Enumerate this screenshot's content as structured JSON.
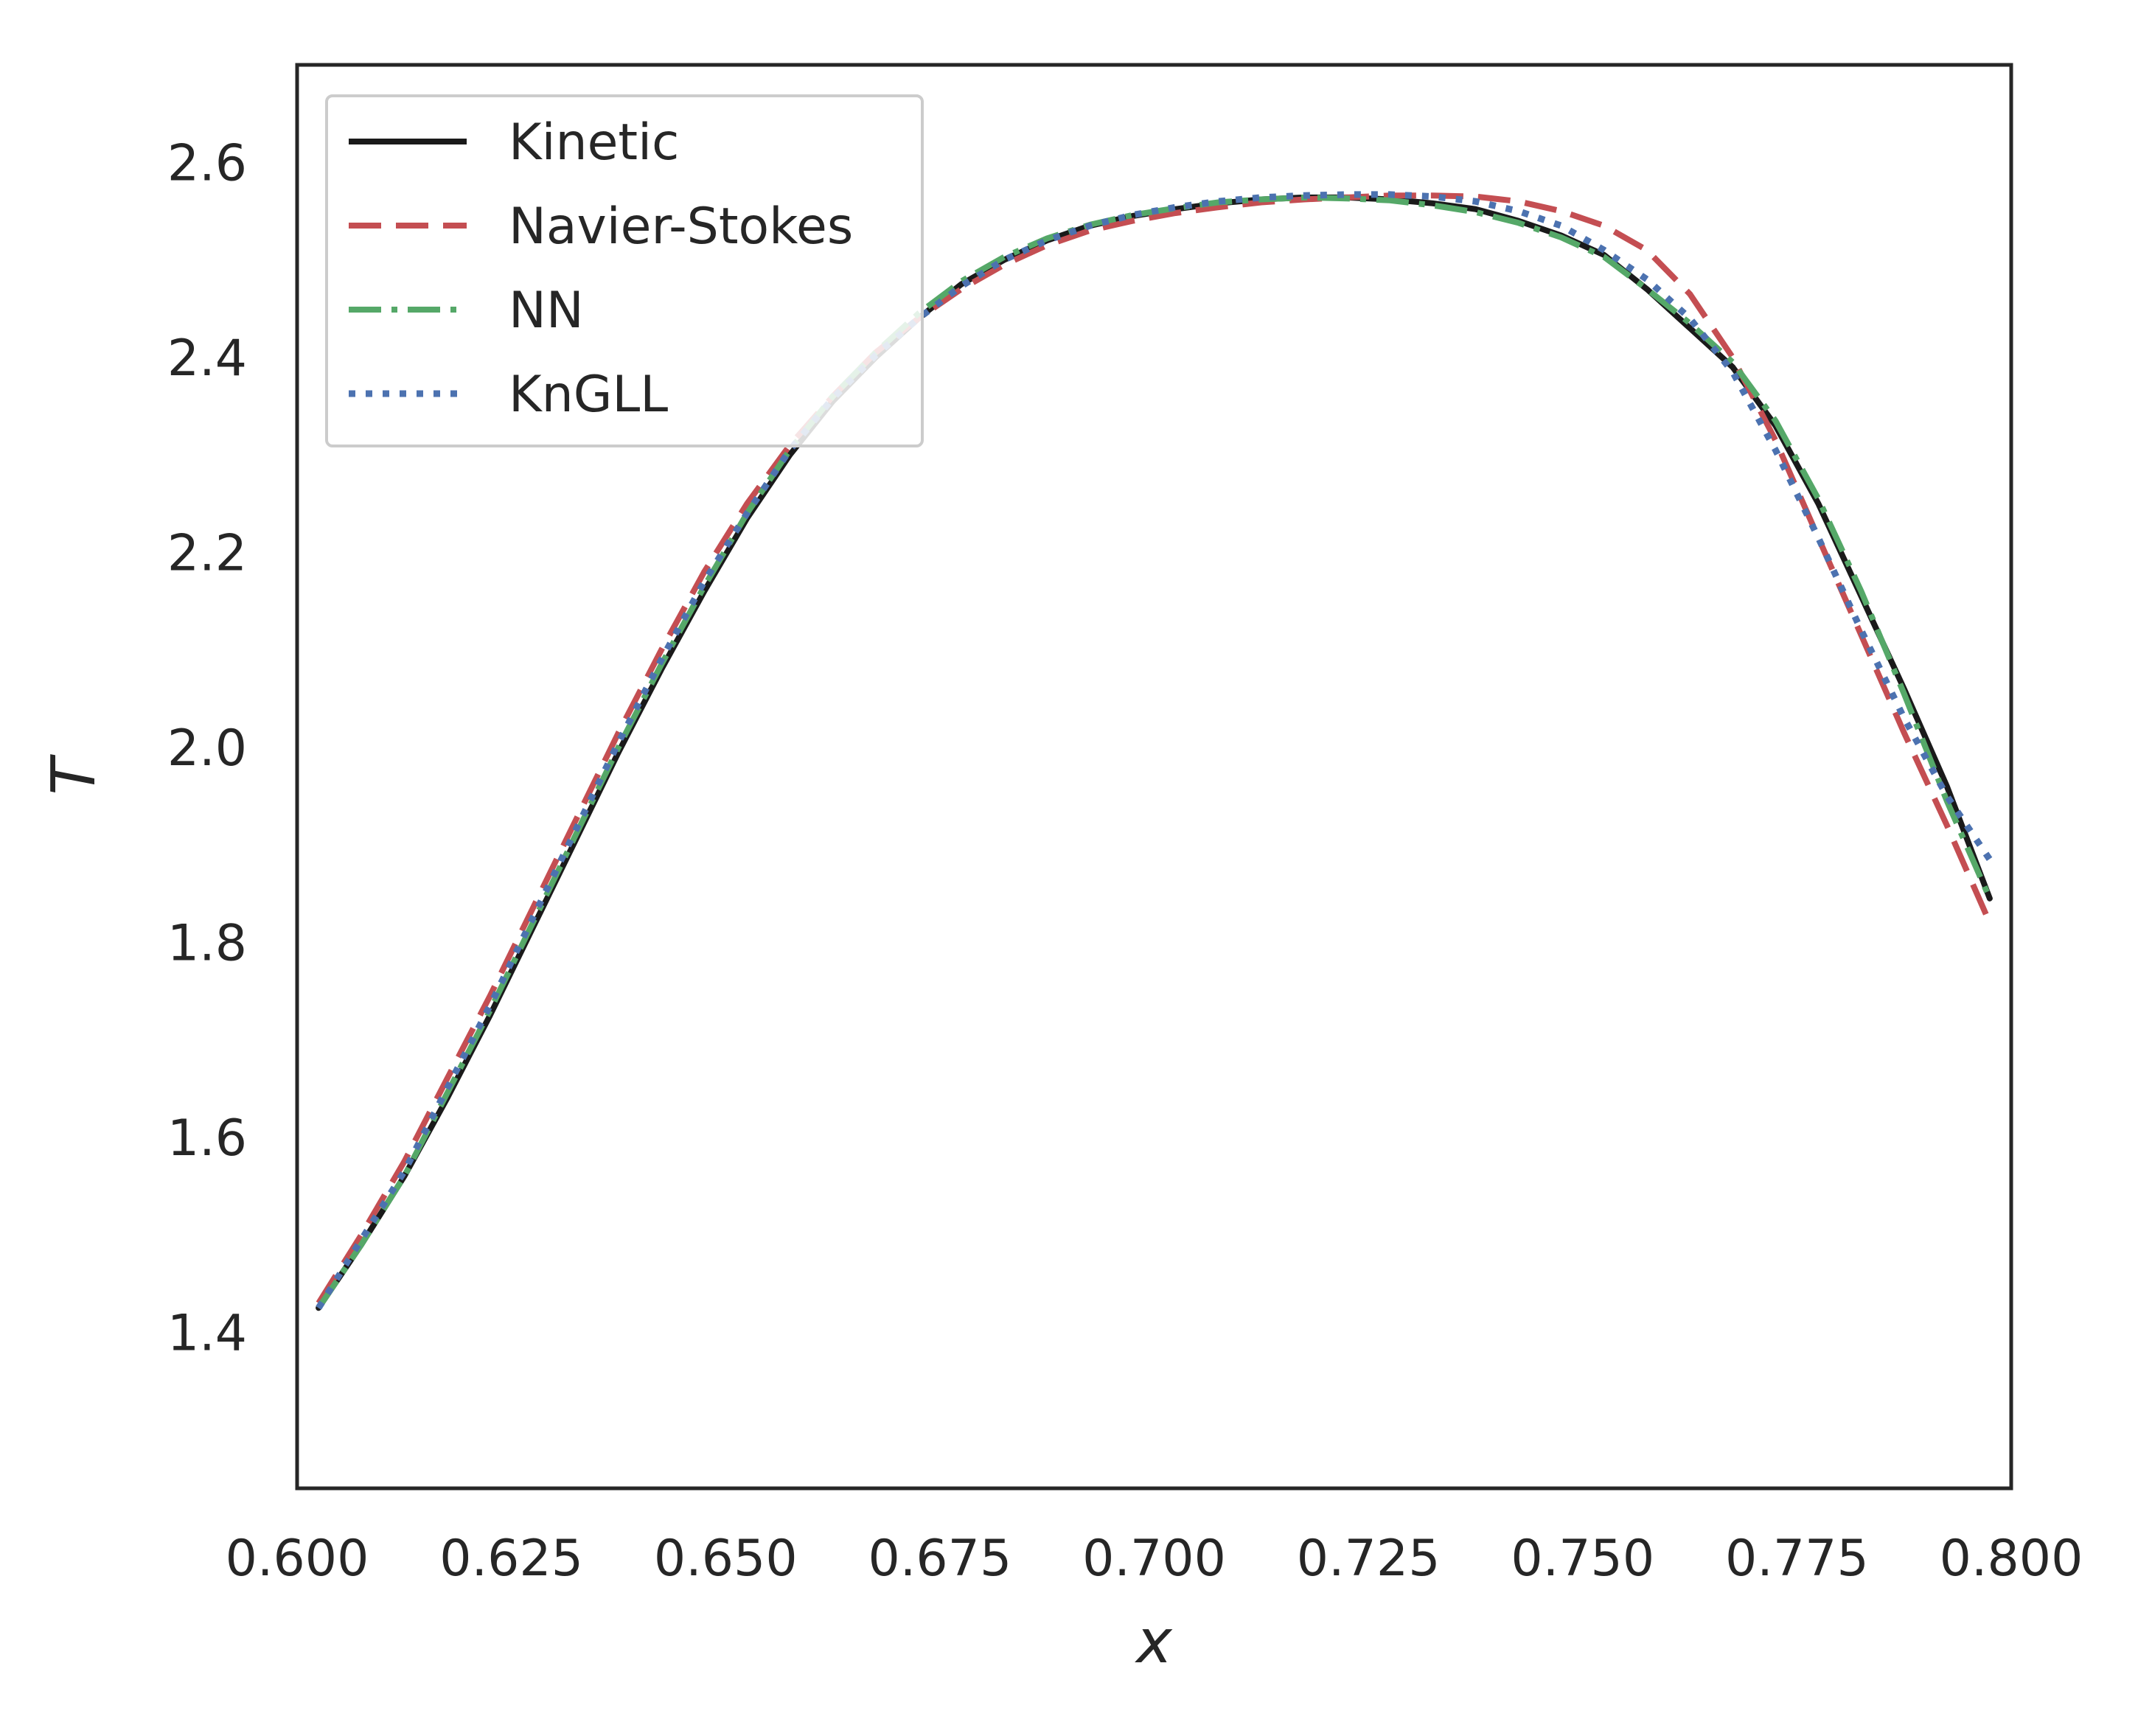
{
  "chart_data": {
    "type": "line",
    "title": "",
    "xlabel": "x",
    "ylabel": "T",
    "xlim": [
      0.6,
      0.8
    ],
    "ylim": [
      1.24,
      2.7
    ],
    "xticks": [
      0.6,
      0.625,
      0.65,
      0.675,
      0.7,
      0.725,
      0.75,
      0.775,
      0.8
    ],
    "xtick_labels": [
      "0.600",
      "0.625",
      "0.650",
      "0.675",
      "0.700",
      "0.725",
      "0.750",
      "0.775",
      "0.800"
    ],
    "yticks": [
      1.4,
      1.6,
      1.8,
      2.0,
      2.2,
      2.4,
      2.6
    ],
    "ytick_labels": [
      "1.4",
      "1.6",
      "1.8",
      "2.0",
      "2.2",
      "2.4",
      "2.6"
    ],
    "grid": false,
    "legend_position": "top-left",
    "series": [
      {
        "name": "Kinetic",
        "color": "#1a1a1a",
        "dash": "solid",
        "x": [
          0.6025,
          0.6075,
          0.6125,
          0.6175,
          0.6225,
          0.6275,
          0.6325,
          0.6375,
          0.6425,
          0.6475,
          0.6525,
          0.6575,
          0.6625,
          0.6675,
          0.6725,
          0.6775,
          0.6825,
          0.6875,
          0.6925,
          0.6975,
          0.7025,
          0.7075,
          0.7125,
          0.7175,
          0.7225,
          0.7275,
          0.7325,
          0.7375,
          0.7425,
          0.7475,
          0.7525,
          0.7575,
          0.7625,
          0.7675,
          0.7725,
          0.7775,
          0.7825,
          0.7875,
          0.7925,
          0.7975
        ],
        "y": [
          1.425,
          1.49,
          1.56,
          1.64,
          1.725,
          1.815,
          1.905,
          1.995,
          2.08,
          2.16,
          2.235,
          2.3,
          2.355,
          2.4,
          2.44,
          2.475,
          2.5,
          2.52,
          2.535,
          2.545,
          2.552,
          2.558,
          2.562,
          2.564,
          2.564,
          2.562,
          2.558,
          2.552,
          2.54,
          2.525,
          2.505,
          2.47,
          2.43,
          2.39,
          2.33,
          2.25,
          2.155,
          2.06,
          1.96,
          1.845
        ]
      },
      {
        "name": "Navier-Stokes",
        "color": "#c44e52",
        "dash": "dashed",
        "x": [
          0.6025,
          0.6075,
          0.6125,
          0.6175,
          0.6225,
          0.6275,
          0.6325,
          0.6375,
          0.6425,
          0.6475,
          0.6525,
          0.6575,
          0.6625,
          0.6675,
          0.6725,
          0.6775,
          0.6825,
          0.6875,
          0.6925,
          0.6975,
          0.7025,
          0.7075,
          0.7125,
          0.7175,
          0.7225,
          0.7275,
          0.7325,
          0.7375,
          0.7425,
          0.7475,
          0.7525,
          0.7575,
          0.7625,
          0.7675,
          0.7725,
          0.7775,
          0.7825,
          0.7875,
          0.7925,
          0.7975
        ],
        "y": [
          1.43,
          1.5,
          1.575,
          1.66,
          1.745,
          1.835,
          1.925,
          2.015,
          2.1,
          2.18,
          2.25,
          2.31,
          2.36,
          2.405,
          2.44,
          2.47,
          2.495,
          2.515,
          2.53,
          2.54,
          2.548,
          2.554,
          2.559,
          2.562,
          2.564,
          2.566,
          2.566,
          2.565,
          2.56,
          2.55,
          2.535,
          2.51,
          2.465,
          2.4,
          2.315,
          2.215,
          2.115,
          2.015,
          1.92,
          1.82
        ]
      },
      {
        "name": "NN",
        "color": "#55a868",
        "dash": "dashdot",
        "x": [
          0.6025,
          0.6075,
          0.6125,
          0.6175,
          0.6225,
          0.6275,
          0.6325,
          0.6375,
          0.6425,
          0.6475,
          0.6525,
          0.6575,
          0.6625,
          0.6675,
          0.6725,
          0.6775,
          0.6825,
          0.6875,
          0.6925,
          0.6975,
          0.7025,
          0.7075,
          0.7125,
          0.7175,
          0.7225,
          0.7275,
          0.7325,
          0.7375,
          0.7425,
          0.7475,
          0.7525,
          0.7575,
          0.7625,
          0.7675,
          0.7725,
          0.7775,
          0.7825,
          0.7875,
          0.7925,
          0.7975
        ],
        "y": [
          1.425,
          1.49,
          1.56,
          1.645,
          1.73,
          1.82,
          1.91,
          2.0,
          2.085,
          2.165,
          2.24,
          2.305,
          2.36,
          2.405,
          2.445,
          2.478,
          2.503,
          2.522,
          2.536,
          2.546,
          2.553,
          2.559,
          2.562,
          2.564,
          2.563,
          2.561,
          2.556,
          2.549,
          2.538,
          2.523,
          2.503,
          2.47,
          2.435,
          2.395,
          2.335,
          2.255,
          2.16,
          2.055,
          1.945,
          1.845
        ]
      },
      {
        "name": "KnGLL",
        "color": "#4c72b0",
        "dash": "dotted",
        "x": [
          0.6025,
          0.6075,
          0.6125,
          0.6175,
          0.6225,
          0.6275,
          0.6325,
          0.6375,
          0.6425,
          0.6475,
          0.6525,
          0.6575,
          0.6625,
          0.6675,
          0.6725,
          0.6775,
          0.6825,
          0.6875,
          0.6925,
          0.6975,
          0.7025,
          0.7075,
          0.7125,
          0.7175,
          0.7225,
          0.7275,
          0.7325,
          0.7375,
          0.7425,
          0.7475,
          0.7525,
          0.7575,
          0.7625,
          0.7675,
          0.7725,
          0.7775,
          0.7825,
          0.7875,
          0.7925,
          0.7975
        ],
        "y": [
          1.425,
          1.495,
          1.565,
          1.65,
          1.735,
          1.825,
          1.915,
          2.005,
          2.09,
          2.17,
          2.24,
          2.305,
          2.358,
          2.402,
          2.44,
          2.473,
          2.5,
          2.52,
          2.535,
          2.546,
          2.554,
          2.56,
          2.564,
          2.566,
          2.567,
          2.567,
          2.565,
          2.56,
          2.55,
          2.535,
          2.51,
          2.48,
          2.44,
          2.385,
          2.305,
          2.215,
          2.12,
          2.03,
          1.95,
          1.885
        ]
      }
    ]
  }
}
